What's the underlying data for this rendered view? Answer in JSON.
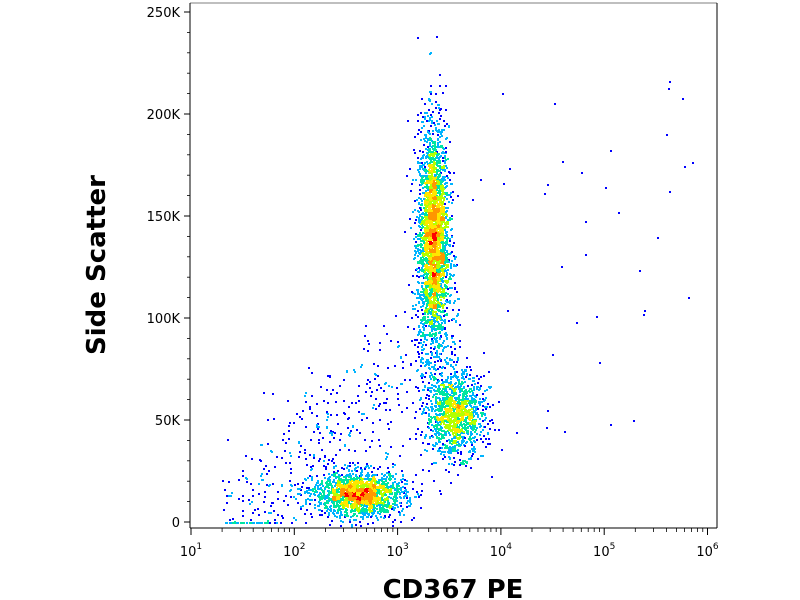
{
  "chart_data": {
    "type": "scatter",
    "style": "flow-cytometry density dot plot",
    "title": "",
    "xlabel": "CD367 PE",
    "ylabel": "Side Scatter",
    "x_scale": "log",
    "xlim": [
      10,
      1000000
    ],
    "ylim": [
      0,
      262144
    ],
    "grid": false,
    "x_ticks": [
      {
        "value": 10,
        "base": "10",
        "exp": "1"
      },
      {
        "value": 100,
        "base": "10",
        "exp": "2"
      },
      {
        "value": 1000,
        "base": "10",
        "exp": "3"
      },
      {
        "value": 10000,
        "base": "10",
        "exp": "4"
      },
      {
        "value": 100000,
        "base": "10",
        "exp": "5"
      },
      {
        "value": 1000000,
        "base": "10",
        "exp": "6"
      }
    ],
    "y_ticks": [
      {
        "value": 0,
        "label": "0"
      },
      {
        "value": 50000,
        "label": "50K"
      },
      {
        "value": 100000,
        "label": "100K"
      },
      {
        "value": 150000,
        "label": "150K"
      },
      {
        "value": 200000,
        "label": "200K"
      },
      {
        "value": 250000,
        "label": "250K"
      }
    ],
    "colormap": [
      "#0000ff",
      "#00b4ff",
      "#00e6a0",
      "#b4ff00",
      "#ffe600",
      "#ff9600",
      "#ff0000"
    ],
    "populations": [
      {
        "x_log_center": 3.34,
        "x_log_sd": 0.075,
        "y_center": 138000,
        "y_sd": 28000,
        "count": 3000,
        "peak_density": "high"
      },
      {
        "x_log_center": 3.55,
        "x_log_sd": 0.14,
        "y_center": 53000,
        "y_sd": 10000,
        "count": 1300,
        "peak_density": "medium"
      },
      {
        "x_log_center": 2.62,
        "x_log_sd": 0.22,
        "y_center": 14000,
        "y_sd": 5500,
        "count": 1800,
        "peak_density": "very high"
      }
    ]
  }
}
